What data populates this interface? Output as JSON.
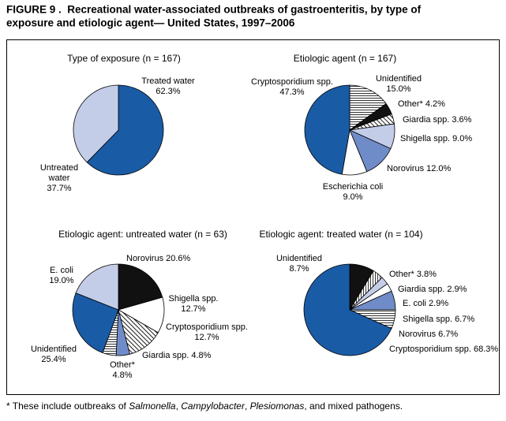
{
  "title": [
    "FIGURE 9 .  Recreational water-associated outbreaks of gastroenteritis, by type of",
    "exposure and etiologic agent— United States, 1997–2006"
  ],
  "chart_data": [
    {
      "type": "pie",
      "title": "Type of exposure (n = 167)",
      "categories": [
        "Treated water",
        "Untreated water"
      ],
      "values": [
        62.3,
        37.7
      ],
      "value_labels": [
        "62.3%",
        "37.7%"
      ],
      "colors": [
        "#1a5ba6",
        "#c4cde8"
      ]
    },
    {
      "type": "pie",
      "title": "Etiologic agent (n = 167)",
      "categories": [
        "Unidentified",
        "Other*",
        "Giardia spp.",
        "Shigella spp.",
        "Norovirus",
        "Escherichia coli",
        "Cryptosporidium spp."
      ],
      "values": [
        15.0,
        4.2,
        3.6,
        9.0,
        12.0,
        9.0,
        47.3
      ],
      "value_labels": [
        "15.0%",
        "4.2%",
        "3.6%",
        "9.0%",
        "12.0%",
        "9.0%",
        "47.3%"
      ],
      "colors": [
        "hlines",
        "#111111",
        "diag",
        "#c4cde8",
        "#6f8cc8",
        "#ffffff",
        "#1a5ba6"
      ]
    },
    {
      "type": "pie",
      "title": "Etiologic agent: untreated water (n = 63)",
      "categories": [
        "Norovirus",
        "Shigella spp.",
        "Cryptosporidium spp.",
        "Giardia spp.",
        "Other*",
        "Unidentified",
        "E. coli"
      ],
      "values": [
        20.6,
        12.7,
        12.7,
        4.8,
        4.8,
        25.4,
        19.0
      ],
      "value_labels": [
        "20.6%",
        "12.7%",
        "12.7%",
        "4.8%",
        "4.8%",
        "25.4%",
        "19.0%"
      ],
      "colors": [
        "#111111",
        "#ffffff",
        "diag",
        "#6f8cc8",
        "hlines",
        "#1a5ba6",
        "#c4cde8"
      ]
    },
    {
      "type": "pie",
      "title": "Etiologic agent: treated water (n = 104)",
      "categories": [
        "Unidentified",
        "Other*",
        "Giardia spp.",
        "E. coli",
        "Shigella spp.",
        "Norovirus",
        "Cryptosporidium spp."
      ],
      "values": [
        8.7,
        3.8,
        2.9,
        2.9,
        6.7,
        6.7,
        68.3
      ],
      "value_labels": [
        "8.7%",
        "3.8%",
        "2.9%",
        "2.9%",
        "6.7%",
        "6.7%",
        "68.3%"
      ],
      "colors": [
        "#111111",
        "vlines",
        "#c4cde8",
        "#ffffff",
        "#6f8cc8",
        "hlines",
        "#1a5ba6"
      ]
    }
  ],
  "footnote": [
    "* These include outbreaks of ",
    "Salmonella",
    ", ",
    "Campylobacter",
    ", ",
    "Plesiomonas",
    ", and mixed pathogens."
  ]
}
